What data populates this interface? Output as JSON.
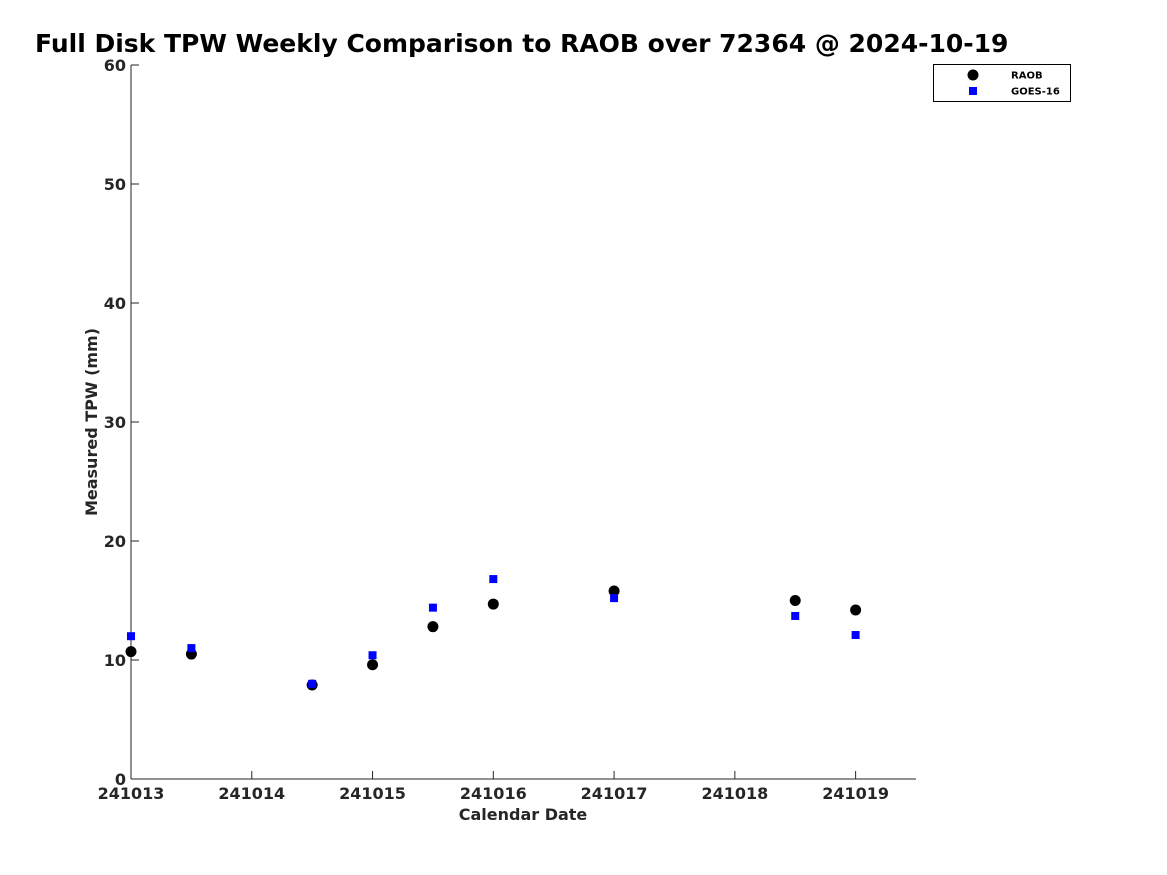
{
  "chart_data": {
    "type": "scatter",
    "title": "Full Disk TPW Weekly Comparison to RAOB over 72364 @ 2024-10-19",
    "xlabel": "Calendar Date",
    "ylabel": "Measured TPW (mm)",
    "xlim": [
      241013,
      241019.5
    ],
    "ylim": [
      0,
      60
    ],
    "x_ticks": [
      241013,
      241014,
      241015,
      241016,
      241017,
      241018,
      241019
    ],
    "x_tick_labels": [
      "241013",
      "241014",
      "241015",
      "241016",
      "241017",
      "241018",
      "241019"
    ],
    "y_ticks": [
      0,
      10,
      20,
      30,
      40,
      50,
      60
    ],
    "y_tick_labels": [
      "0",
      "10",
      "20",
      "30",
      "40",
      "50",
      "60"
    ],
    "grid": false,
    "legend_position": "top-right",
    "series": [
      {
        "name": "RAOB",
        "marker": "circle",
        "color": "#000000",
        "points": [
          {
            "x": 241013.0,
            "y": 10.7
          },
          {
            "x": 241013.5,
            "y": 10.5
          },
          {
            "x": 241014.5,
            "y": 7.9
          },
          {
            "x": 241015.0,
            "y": 9.6
          },
          {
            "x": 241015.5,
            "y": 12.8
          },
          {
            "x": 241016.0,
            "y": 14.7
          },
          {
            "x": 241017.0,
            "y": 15.8
          },
          {
            "x": 241018.5,
            "y": 15.0
          },
          {
            "x": 241019.0,
            "y": 14.2
          }
        ]
      },
      {
        "name": "GOES-16",
        "marker": "square",
        "color": "#0000ff",
        "points": [
          {
            "x": 241013.0,
            "y": 12.0
          },
          {
            "x": 241013.5,
            "y": 11.0
          },
          {
            "x": 241014.5,
            "y": 8.0
          },
          {
            "x": 241015.0,
            "y": 10.4
          },
          {
            "x": 241015.5,
            "y": 14.4
          },
          {
            "x": 241016.0,
            "y": 16.8
          },
          {
            "x": 241017.0,
            "y": 15.2
          },
          {
            "x": 241018.5,
            "y": 13.7
          },
          {
            "x": 241019.0,
            "y": 12.1
          }
        ]
      }
    ]
  }
}
